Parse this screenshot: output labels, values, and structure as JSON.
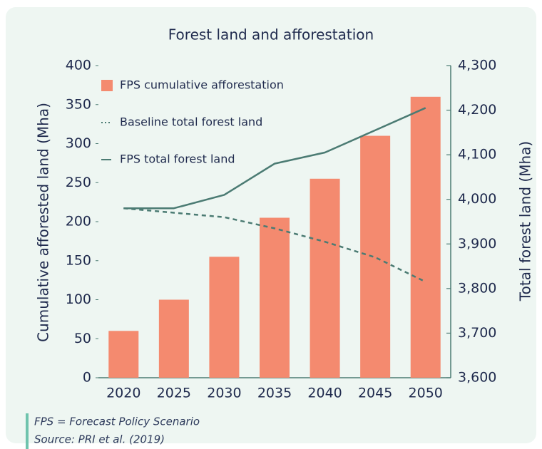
{
  "chart_data": {
    "type": "bar",
    "title": "Forest land and afforestation",
    "y_label": "Cumulative afforested land (Mha)",
    "y2_label": "Total forest land (Mha)",
    "categories": [
      "2020",
      "2025",
      "2030",
      "2035",
      "2040",
      "2045",
      "2050"
    ],
    "series": [
      {
        "name": "FPS cumulative afforestation",
        "type": "bar",
        "axis": "y",
        "color": "#f48a6f",
        "values": [
          60,
          100,
          155,
          205,
          255,
          310,
          360
        ]
      },
      {
        "name": "Baseline total forest land",
        "type": "line",
        "axis": "y2",
        "line_style": "dashed",
        "color": "#4b7b73",
        "values": [
          3980,
          3970,
          3960,
          3935,
          3905,
          3870,
          3815
        ]
      },
      {
        "name": "FPS total forest land",
        "type": "line",
        "axis": "y2",
        "line_style": "solid",
        "color": "#4b7b73",
        "values": [
          3980,
          3980,
          4010,
          4080,
          4105,
          4155,
          4205
        ]
      }
    ],
    "ylim": [
      0,
      400
    ],
    "yticks": [
      0,
      50,
      100,
      150,
      200,
      250,
      300,
      350,
      400
    ],
    "y2lim": [
      3600,
      4300
    ],
    "y2ticks": [
      {
        "value": 3600,
        "label": "3,600"
      },
      {
        "value": 3700,
        "label": "3,700"
      },
      {
        "value": 3800,
        "label": "3,800"
      },
      {
        "value": 3900,
        "label": "3,900"
      },
      {
        "value": 4000,
        "label": "4,000"
      },
      {
        "value": 4100,
        "label": "4,100"
      },
      {
        "value": 4200,
        "label": "4,200"
      },
      {
        "value": 4300,
        "label": "4,300"
      }
    ],
    "legend": "upper left",
    "notes": [
      "FPS = Forecast Policy Scenario",
      "Source: PRI et al. (2019)"
    ]
  }
}
